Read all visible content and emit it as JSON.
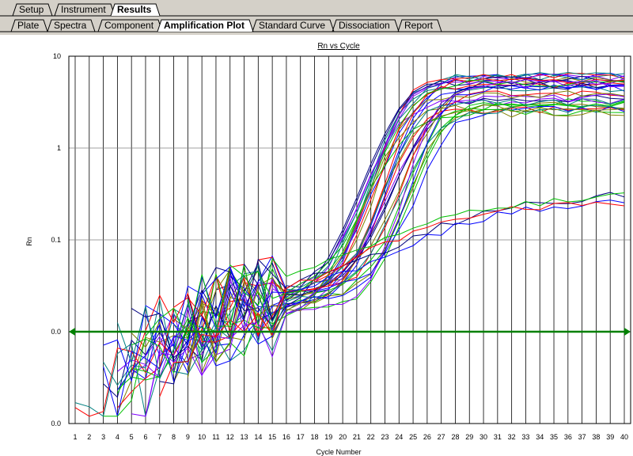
{
  "tabs_top": [
    {
      "label": "Setup",
      "active": false
    },
    {
      "label": "Instrument",
      "active": false
    },
    {
      "label": "Results",
      "active": true
    }
  ],
  "tabs_sub": [
    {
      "label": "Plate",
      "active": false
    },
    {
      "label": "Spectra",
      "active": false
    },
    {
      "label": "Component",
      "active": false
    },
    {
      "label": "Amplification Plot",
      "active": true
    },
    {
      "label": "Standard Curve",
      "active": false
    },
    {
      "label": "Dissociation",
      "active": false
    },
    {
      "label": "Report",
      "active": false
    }
  ],
  "chart_data": {
    "type": "line",
    "title": "Rn vs Cycle",
    "xlabel": "Cycle Number",
    "ylabel": "Rn",
    "y_scale": "log",
    "ylim": [
      0.001,
      10
    ],
    "xlim": [
      1,
      40
    ],
    "y_tick_labels": [
      "10",
      "1",
      "0.1",
      "0.0",
      "0.0"
    ],
    "y_tick_values": [
      10,
      1,
      0.1,
      0.01,
      0.001
    ],
    "x_ticks": [
      1,
      2,
      3,
      4,
      5,
      6,
      7,
      8,
      9,
      10,
      11,
      12,
      13,
      14,
      15,
      16,
      17,
      18,
      19,
      20,
      21,
      22,
      23,
      24,
      25,
      26,
      27,
      28,
      29,
      30,
      31,
      32,
      33,
      34,
      35,
      36,
      37,
      38,
      39,
      40
    ],
    "grid_vertical": true,
    "grid_horizontal": true,
    "threshold": 0.01,
    "threshold_color": "#008000",
    "series_colors": [
      "#0000ff",
      "#ff0000",
      "#00c000",
      "#8000ff",
      "#808000",
      "#008080",
      "#000080"
    ],
    "series_groups": [
      {
        "count": 34,
        "plateau": 4.2,
        "plateau_spread": 0.9,
        "midpoint": 25.6,
        "midpoint_spread": 1.8,
        "slope": 1.05
      },
      {
        "count": 4,
        "plateau": 0.17,
        "plateau_spread": 0.1,
        "midpoint": 26.5,
        "midpoint_spread": 2.0,
        "slope": 0.35
      }
    ]
  }
}
